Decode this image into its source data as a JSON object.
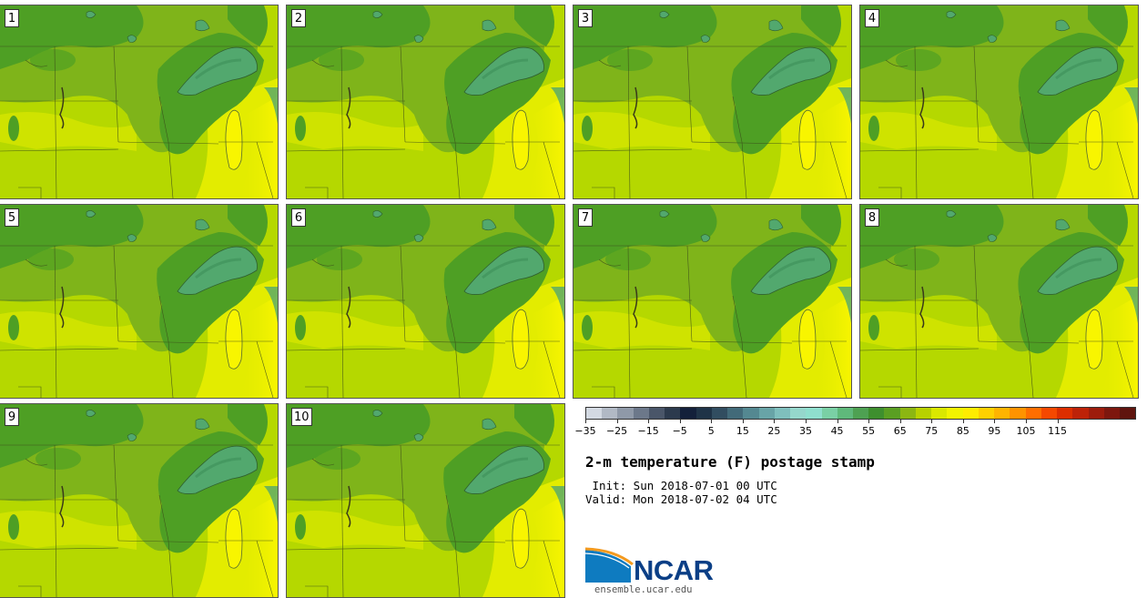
{
  "panels": [
    {
      "label": "1"
    },
    {
      "label": "2"
    },
    {
      "label": "3"
    },
    {
      "label": "4"
    },
    {
      "label": "5"
    },
    {
      "label": "6"
    },
    {
      "label": "7"
    },
    {
      "label": "8"
    },
    {
      "label": "9"
    },
    {
      "label": "10"
    }
  ],
  "map_colors": {
    "dark_green": "#4e9f24",
    "mid_green": "#7fb41a",
    "yellow_green": "#b5d800",
    "yellow": "#e3ec00",
    "bright_yellow": "#f8f500",
    "lake": "#52a86e",
    "lake_dark": "#3d8f58"
  },
  "colorbar": {
    "colors": [
      "#d3d9e2",
      "#b1b9c5",
      "#8f99a8",
      "#6c788a",
      "#4a5669",
      "#2c3a4d",
      "#13203a",
      "#1f3347",
      "#314d60",
      "#426a79",
      "#548891",
      "#68a4a7",
      "#7fbfbd",
      "#95d7cc",
      "#8fdfce",
      "#7ad0a5",
      "#5fb97b",
      "#4ea152",
      "#3e8f2e",
      "#5a9f22",
      "#8cb612",
      "#b8d100",
      "#dae800",
      "#f2f400",
      "#ffec00",
      "#ffd000",
      "#ffb400",
      "#ff9300",
      "#ff6e00",
      "#f54800",
      "#dc2e00",
      "#bd2208",
      "#9d1c0c",
      "#7d170e",
      "#5f140e"
    ],
    "ticks": [
      "−35",
      "−25",
      "−15",
      "−5",
      "5",
      "15",
      "25",
      "35",
      "45",
      "55",
      "65",
      "75",
      "85",
      "95",
      "105",
      "115"
    ]
  },
  "title": "2-m temperature (F) postage stamp",
  "init_line": " Init: Sun 2018-07-01 00 UTC",
  "valid_line": "Valid: Mon 2018-07-02 04 UTC",
  "logo": {
    "word": "NCAR",
    "url": "ensemble.ucar.edu",
    "blue": "#0e7bc0",
    "orange": "#f39a1f"
  }
}
